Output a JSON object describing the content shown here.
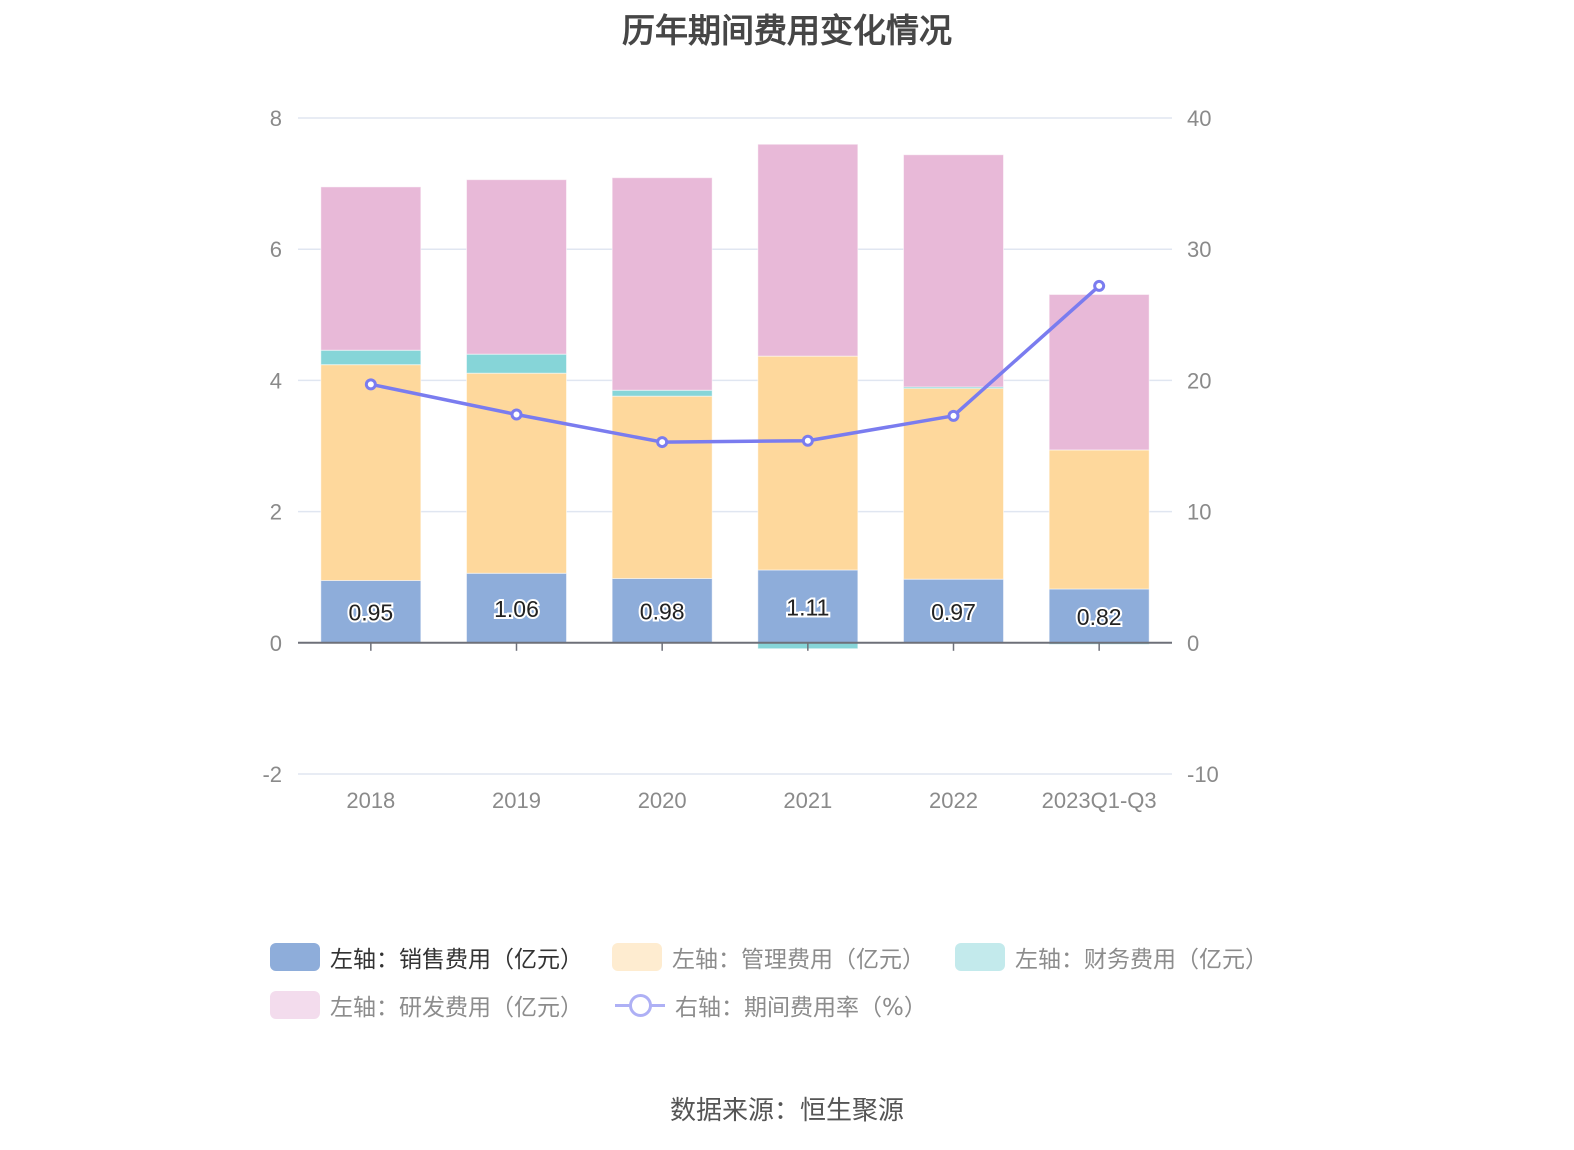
{
  "title": "历年期间费用变化情况",
  "source": "数据来源：恒生聚源",
  "chart_data": {
    "type": "bar",
    "stacked": true,
    "title": "历年期间费用变化情况",
    "categories": [
      "2018",
      "2019",
      "2020",
      "2021",
      "2022",
      "2023Q1-Q3"
    ],
    "y_left": {
      "range": [
        -2,
        8
      ],
      "ticks": [
        "-2",
        "0",
        "2",
        "4",
        "6",
        "8"
      ]
    },
    "y_right": {
      "range": [
        -10,
        40
      ],
      "ticks": [
        "-10",
        "0",
        "10",
        "20",
        "30",
        "40"
      ]
    },
    "grid": true,
    "legend_position": "bottom",
    "series": [
      {
        "name": "左轴：销售费用（亿元）",
        "axis": "left",
        "kind": "bar",
        "color": "#8eadda",
        "values": [
          0.95,
          1.06,
          0.98,
          1.11,
          0.97,
          0.82
        ],
        "labels": [
          "0.95",
          "1.06",
          "0.98",
          "1.11",
          "0.97",
          "0.82"
        ]
      },
      {
        "name": "左轴：管理费用（亿元）",
        "axis": "left",
        "kind": "bar",
        "color": "#fed89c",
        "legend_color": "#feecd0",
        "values": [
          3.29,
          3.05,
          2.78,
          3.26,
          2.92,
          2.12
        ]
      },
      {
        "name": "左轴：财务费用（亿元）",
        "axis": "left",
        "kind": "bar",
        "color": "#86d5d8",
        "legend_color": "#c3eaec",
        "values": [
          0.22,
          0.29,
          0.09,
          -0.09,
          0.01,
          -0.01
        ]
      },
      {
        "name": "左轴：研发费用（亿元）",
        "axis": "left",
        "kind": "bar",
        "color": "#e8b9d8",
        "legend_color": "#f3dced",
        "values": [
          2.49,
          2.66,
          3.24,
          3.23,
          3.54,
          2.37
        ]
      },
      {
        "name": "右轴：期间费用率（%）",
        "axis": "right",
        "kind": "line",
        "color": "#7a7cef",
        "legend_color": "#aeb0f5",
        "values": [
          19.7,
          17.4,
          15.3,
          15.4,
          17.3,
          27.2
        ]
      }
    ]
  }
}
